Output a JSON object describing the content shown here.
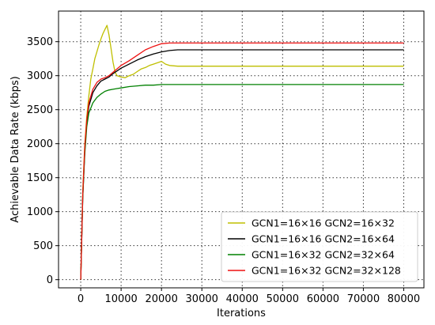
{
  "chart_data": {
    "type": "line",
    "xlabel": "Iterations",
    "ylabel": "Achievable Data Rate (kbps)",
    "xlim": [
      -5500,
      85000
    ],
    "ylim": [
      -120,
      3950
    ],
    "xticks": [
      0,
      10000,
      20000,
      30000,
      40000,
      50000,
      60000,
      70000,
      80000
    ],
    "xtick_labels": [
      "0",
      "10000",
      "20000",
      "30000",
      "40000",
      "50000",
      "60000",
      "70000",
      "80000"
    ],
    "yticks": [
      0,
      500,
      1000,
      1500,
      2000,
      2500,
      3000,
      3500
    ],
    "ytick_labels": [
      "0",
      "500",
      "1000",
      "1500",
      "2000",
      "2500",
      "3000",
      "3500"
    ],
    "grid": true,
    "legend_position": "bottom-right",
    "series": [
      {
        "name": "GCN1=16×16 GCN2=16×32",
        "color": "#bfbf00",
        "points": [
          [
            0,
            0
          ],
          [
            500,
            1300
          ],
          [
            1000,
            2000
          ],
          [
            1500,
            2400
          ],
          [
            2000,
            2700
          ],
          [
            2500,
            2950
          ],
          [
            3000,
            3100
          ],
          [
            3500,
            3250
          ],
          [
            4000,
            3350
          ],
          [
            4500,
            3450
          ],
          [
            5000,
            3540
          ],
          [
            5500,
            3620
          ],
          [
            6000,
            3680
          ],
          [
            6500,
            3740
          ],
          [
            7000,
            3600
          ],
          [
            7500,
            3400
          ],
          [
            8000,
            3200
          ],
          [
            8500,
            3050
          ],
          [
            9000,
            3000
          ],
          [
            10000,
            2980
          ],
          [
            11000,
            2970
          ],
          [
            12000,
            3000
          ],
          [
            13000,
            3020
          ],
          [
            14000,
            3060
          ],
          [
            15000,
            3100
          ],
          [
            16000,
            3120
          ],
          [
            17000,
            3150
          ],
          [
            18000,
            3170
          ],
          [
            19000,
            3190
          ],
          [
            20000,
            3210
          ],
          [
            21000,
            3170
          ],
          [
            22000,
            3150
          ],
          [
            24000,
            3140
          ],
          [
            80000,
            3140
          ]
        ]
      },
      {
        "name": "GCN1=16×16 GCN2=16×64",
        "color": "#000000",
        "points": [
          [
            0,
            0
          ],
          [
            500,
            1200
          ],
          [
            1000,
            1900
          ],
          [
            1500,
            2300
          ],
          [
            2000,
            2550
          ],
          [
            3000,
            2750
          ],
          [
            4000,
            2850
          ],
          [
            5000,
            2920
          ],
          [
            6000,
            2950
          ],
          [
            7000,
            2980
          ],
          [
            8000,
            3030
          ],
          [
            9000,
            3070
          ],
          [
            10000,
            3110
          ],
          [
            12000,
            3170
          ],
          [
            14000,
            3230
          ],
          [
            16000,
            3280
          ],
          [
            18000,
            3320
          ],
          [
            20000,
            3350
          ],
          [
            22000,
            3370
          ],
          [
            24000,
            3380
          ],
          [
            80000,
            3380
          ]
        ]
      },
      {
        "name": "GCN1=16×32 GCN2=32×64",
        "color": "#008000",
        "points": [
          [
            0,
            0
          ],
          [
            500,
            1200
          ],
          [
            1000,
            1850
          ],
          [
            1500,
            2250
          ],
          [
            2000,
            2450
          ],
          [
            3000,
            2600
          ],
          [
            4000,
            2680
          ],
          [
            5000,
            2730
          ],
          [
            6000,
            2770
          ],
          [
            7000,
            2790
          ],
          [
            8000,
            2800
          ],
          [
            9000,
            2810
          ],
          [
            10000,
            2820
          ],
          [
            12000,
            2840
          ],
          [
            14000,
            2850
          ],
          [
            16000,
            2860
          ],
          [
            18000,
            2860
          ],
          [
            20000,
            2870
          ],
          [
            22000,
            2870
          ],
          [
            80000,
            2870
          ]
        ]
      },
      {
        "name": "GCN1=16×32 GCN2=32×128",
        "color": "#ee1111",
        "points": [
          [
            0,
            0
          ],
          [
            500,
            1250
          ],
          [
            1000,
            1950
          ],
          [
            1500,
            2350
          ],
          [
            2000,
            2600
          ],
          [
            3000,
            2800
          ],
          [
            4000,
            2900
          ],
          [
            5000,
            2950
          ],
          [
            6000,
            2970
          ],
          [
            7000,
            3000
          ],
          [
            8000,
            3050
          ],
          [
            9000,
            3100
          ],
          [
            10000,
            3150
          ],
          [
            12000,
            3220
          ],
          [
            14000,
            3300
          ],
          [
            16000,
            3380
          ],
          [
            18000,
            3430
          ],
          [
            20000,
            3470
          ],
          [
            22000,
            3480
          ],
          [
            24000,
            3480
          ],
          [
            80000,
            3480
          ]
        ]
      }
    ]
  }
}
